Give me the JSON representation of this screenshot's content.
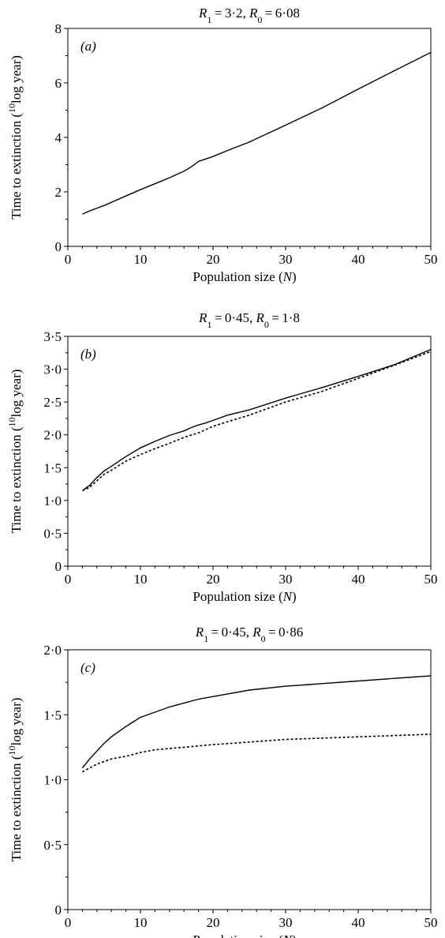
{
  "chart_data": [
    {
      "type": "line",
      "panel_label": "(a)",
      "title_parts": [
        "R",
        "1",
        " = 3·2, ",
        "R",
        "0",
        " = 6·08"
      ],
      "xlabel_parts": [
        "Population size (",
        "N",
        ")"
      ],
      "ylabel_parts": [
        "Time to extinction (",
        "10",
        "log year)"
      ],
      "xlim": [
        0,
        50
      ],
      "ylim": [
        0,
        8
      ],
      "xticks": [
        0,
        10,
        20,
        30,
        40,
        50
      ],
      "xtick_labels": [
        "0",
        "10",
        "20",
        "30",
        "40",
        "50"
      ],
      "yticks": [
        0,
        2,
        4,
        6,
        8
      ],
      "ytick_labels": [
        "0",
        "2",
        "4",
        "6",
        "8"
      ],
      "grid": false,
      "series": [
        {
          "style": "solid",
          "x": [
            2,
            3,
            5,
            8,
            10,
            12,
            14,
            16,
            17,
            18,
            20,
            22,
            25,
            30,
            35,
            40,
            45,
            50
          ],
          "y": [
            1.18,
            1.3,
            1.5,
            1.85,
            2.08,
            2.3,
            2.52,
            2.76,
            2.92,
            3.12,
            3.3,
            3.52,
            3.83,
            4.45,
            5.08,
            5.77,
            6.45,
            7.12
          ]
        }
      ]
    },
    {
      "type": "line",
      "panel_label": "(b)",
      "title_parts": [
        "R",
        "1",
        " = 0·45, ",
        "R",
        "0",
        " = 1·8"
      ],
      "xlabel_parts": [
        "Population size (",
        "N",
        ")"
      ],
      "ylabel_parts": [
        "Time to extinction (",
        "10",
        "log year)"
      ],
      "xlim": [
        0,
        50
      ],
      "ylim": [
        0,
        3.5
      ],
      "xticks": [
        0,
        10,
        20,
        30,
        40,
        50
      ],
      "xtick_labels": [
        "0",
        "10",
        "20",
        "30",
        "40",
        "50"
      ],
      "yticks": [
        0,
        0.5,
        1.0,
        1.5,
        2.0,
        2.5,
        3.0,
        3.5
      ],
      "ytick_labels": [
        "0",
        "0·5",
        "1·0",
        "1·5",
        "2·0",
        "2·5",
        "3·0",
        "3·5"
      ],
      "grid": false,
      "series": [
        {
          "style": "solid",
          "x": [
            2,
            3,
            4,
            5,
            6,
            8,
            10,
            12,
            14,
            16,
            17,
            18,
            19,
            20,
            22,
            25,
            30,
            35,
            40,
            45,
            50
          ],
          "y": [
            1.15,
            1.23,
            1.35,
            1.45,
            1.52,
            1.67,
            1.8,
            1.9,
            1.99,
            2.06,
            2.11,
            2.15,
            2.18,
            2.22,
            2.3,
            2.38,
            2.56,
            2.72,
            2.89,
            3.07,
            3.3
          ]
        },
        {
          "style": "dotted",
          "x": [
            2,
            3,
            4,
            5,
            6,
            8,
            10,
            12,
            14,
            16,
            18,
            20,
            22,
            25,
            30,
            35,
            40,
            45,
            50
          ],
          "y": [
            1.15,
            1.2,
            1.3,
            1.4,
            1.46,
            1.6,
            1.7,
            1.79,
            1.87,
            1.96,
            2.03,
            2.13,
            2.2,
            2.3,
            2.5,
            2.66,
            2.86,
            3.06,
            3.27
          ]
        }
      ]
    },
    {
      "type": "line",
      "panel_label": "(c)",
      "title_parts": [
        "R",
        "1",
        " = 0·45, ",
        "R",
        "0",
        " = 0·86"
      ],
      "xlabel_parts": [
        "Population size (",
        "N",
        ")"
      ],
      "ylabel_parts": [
        "Time to extinction (",
        "10",
        "log year)"
      ],
      "xlim": [
        0,
        50
      ],
      "ylim": [
        0,
        2.0
      ],
      "xticks": [
        0,
        10,
        20,
        30,
        40,
        50
      ],
      "xtick_labels": [
        "0",
        "10",
        "20",
        "30",
        "40",
        "50"
      ],
      "yticks": [
        0,
        0.5,
        1.0,
        1.5,
        2.0
      ],
      "ytick_labels": [
        "0",
        "0·5",
        "1·0",
        "1·5",
        "2·0"
      ],
      "grid": false,
      "series": [
        {
          "style": "solid",
          "x": [
            2,
            3,
            4,
            5,
            6,
            8,
            10,
            12,
            14,
            16,
            18,
            20,
            22,
            25,
            30,
            35,
            40,
            45,
            50
          ],
          "y": [
            1.09,
            1.16,
            1.22,
            1.28,
            1.33,
            1.41,
            1.48,
            1.52,
            1.56,
            1.59,
            1.62,
            1.64,
            1.66,
            1.69,
            1.72,
            1.74,
            1.76,
            1.78,
            1.8
          ]
        },
        {
          "style": "dotted",
          "x": [
            2,
            3,
            4,
            5,
            6,
            8,
            10,
            12,
            14,
            16,
            18,
            20,
            25,
            30,
            35,
            40,
            45,
            50
          ],
          "y": [
            1.06,
            1.09,
            1.12,
            1.14,
            1.16,
            1.18,
            1.21,
            1.23,
            1.24,
            1.25,
            1.26,
            1.27,
            1.29,
            1.31,
            1.32,
            1.33,
            1.34,
            1.35
          ]
        }
      ]
    }
  ]
}
